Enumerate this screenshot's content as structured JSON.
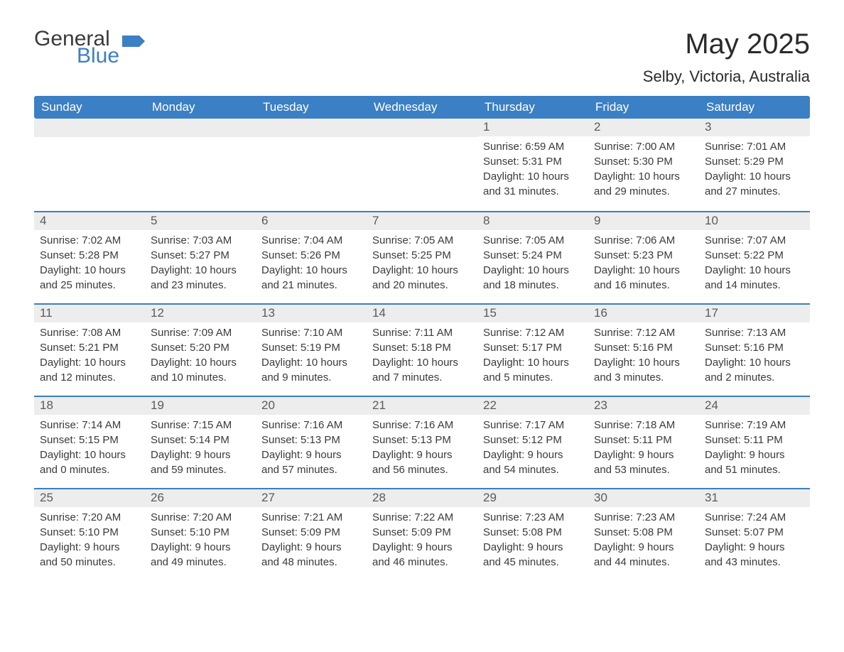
{
  "logo": {
    "general": "General",
    "blue": "Blue"
  },
  "header": {
    "title": "May 2025",
    "location": "Selby, Victoria, Australia"
  },
  "colors": {
    "header_bg": "#3b7fc4",
    "header_text": "#ffffff",
    "daynum_bg": "#ededed",
    "daynum_border": "#3b7fc4",
    "body_text": "#3a3a3a",
    "logo_blue": "#3b7fc4"
  },
  "daysOfWeek": [
    "Sunday",
    "Monday",
    "Tuesday",
    "Wednesday",
    "Thursday",
    "Friday",
    "Saturday"
  ],
  "weeks": [
    [
      null,
      null,
      null,
      null,
      {
        "n": "1",
        "sunrise": "6:59 AM",
        "sunset": "5:31 PM",
        "dl_h": "10",
        "dl_m": "31"
      },
      {
        "n": "2",
        "sunrise": "7:00 AM",
        "sunset": "5:30 PM",
        "dl_h": "10",
        "dl_m": "29"
      },
      {
        "n": "3",
        "sunrise": "7:01 AM",
        "sunset": "5:29 PM",
        "dl_h": "10",
        "dl_m": "27"
      }
    ],
    [
      {
        "n": "4",
        "sunrise": "7:02 AM",
        "sunset": "5:28 PM",
        "dl_h": "10",
        "dl_m": "25"
      },
      {
        "n": "5",
        "sunrise": "7:03 AM",
        "sunset": "5:27 PM",
        "dl_h": "10",
        "dl_m": "23"
      },
      {
        "n": "6",
        "sunrise": "7:04 AM",
        "sunset": "5:26 PM",
        "dl_h": "10",
        "dl_m": "21"
      },
      {
        "n": "7",
        "sunrise": "7:05 AM",
        "sunset": "5:25 PM",
        "dl_h": "10",
        "dl_m": "20"
      },
      {
        "n": "8",
        "sunrise": "7:05 AM",
        "sunset": "5:24 PM",
        "dl_h": "10",
        "dl_m": "18"
      },
      {
        "n": "9",
        "sunrise": "7:06 AM",
        "sunset": "5:23 PM",
        "dl_h": "10",
        "dl_m": "16"
      },
      {
        "n": "10",
        "sunrise": "7:07 AM",
        "sunset": "5:22 PM",
        "dl_h": "10",
        "dl_m": "14"
      }
    ],
    [
      {
        "n": "11",
        "sunrise": "7:08 AM",
        "sunset": "5:21 PM",
        "dl_h": "10",
        "dl_m": "12"
      },
      {
        "n": "12",
        "sunrise": "7:09 AM",
        "sunset": "5:20 PM",
        "dl_h": "10",
        "dl_m": "10"
      },
      {
        "n": "13",
        "sunrise": "7:10 AM",
        "sunset": "5:19 PM",
        "dl_h": "10",
        "dl_m": "9"
      },
      {
        "n": "14",
        "sunrise": "7:11 AM",
        "sunset": "5:18 PM",
        "dl_h": "10",
        "dl_m": "7"
      },
      {
        "n": "15",
        "sunrise": "7:12 AM",
        "sunset": "5:17 PM",
        "dl_h": "10",
        "dl_m": "5"
      },
      {
        "n": "16",
        "sunrise": "7:12 AM",
        "sunset": "5:16 PM",
        "dl_h": "10",
        "dl_m": "3"
      },
      {
        "n": "17",
        "sunrise": "7:13 AM",
        "sunset": "5:16 PM",
        "dl_h": "10",
        "dl_m": "2"
      }
    ],
    [
      {
        "n": "18",
        "sunrise": "7:14 AM",
        "sunset": "5:15 PM",
        "dl_h": "10",
        "dl_m": "0"
      },
      {
        "n": "19",
        "sunrise": "7:15 AM",
        "sunset": "5:14 PM",
        "dl_h": "9",
        "dl_m": "59"
      },
      {
        "n": "20",
        "sunrise": "7:16 AM",
        "sunset": "5:13 PM",
        "dl_h": "9",
        "dl_m": "57"
      },
      {
        "n": "21",
        "sunrise": "7:16 AM",
        "sunset": "5:13 PM",
        "dl_h": "9",
        "dl_m": "56"
      },
      {
        "n": "22",
        "sunrise": "7:17 AM",
        "sunset": "5:12 PM",
        "dl_h": "9",
        "dl_m": "54"
      },
      {
        "n": "23",
        "sunrise": "7:18 AM",
        "sunset": "5:11 PM",
        "dl_h": "9",
        "dl_m": "53"
      },
      {
        "n": "24",
        "sunrise": "7:19 AM",
        "sunset": "5:11 PM",
        "dl_h": "9",
        "dl_m": "51"
      }
    ],
    [
      {
        "n": "25",
        "sunrise": "7:20 AM",
        "sunset": "5:10 PM",
        "dl_h": "9",
        "dl_m": "50"
      },
      {
        "n": "26",
        "sunrise": "7:20 AM",
        "sunset": "5:10 PM",
        "dl_h": "9",
        "dl_m": "49"
      },
      {
        "n": "27",
        "sunrise": "7:21 AM",
        "sunset": "5:09 PM",
        "dl_h": "9",
        "dl_m": "48"
      },
      {
        "n": "28",
        "sunrise": "7:22 AM",
        "sunset": "5:09 PM",
        "dl_h": "9",
        "dl_m": "46"
      },
      {
        "n": "29",
        "sunrise": "7:23 AM",
        "sunset": "5:08 PM",
        "dl_h": "9",
        "dl_m": "45"
      },
      {
        "n": "30",
        "sunrise": "7:23 AM",
        "sunset": "5:08 PM",
        "dl_h": "9",
        "dl_m": "44"
      },
      {
        "n": "31",
        "sunrise": "7:24 AM",
        "sunset": "5:07 PM",
        "dl_h": "9",
        "dl_m": "43"
      }
    ]
  ],
  "labels": {
    "sunrise": "Sunrise:",
    "sunset": "Sunset:",
    "daylight": "Daylight:",
    "hours": "hours",
    "and": "and",
    "minutes": "minutes."
  }
}
